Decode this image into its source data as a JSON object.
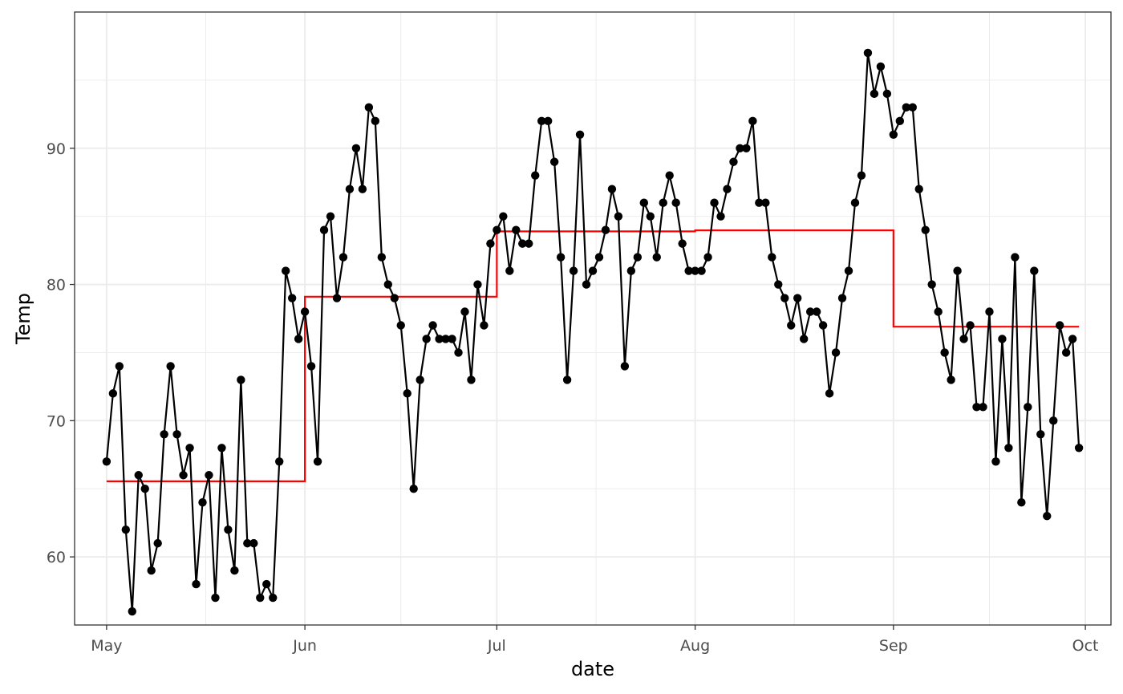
{
  "chart_data": {
    "type": "line",
    "xlabel": "date",
    "ylabel": "Temp",
    "xlim": [
      "1973-04-26",
      "1973-10-05"
    ],
    "ylim": [
      55,
      100
    ],
    "x_ticks": [
      {
        "date": "1973-05-01",
        "label": "May"
      },
      {
        "date": "1973-06-01",
        "label": "Jun"
      },
      {
        "date": "1973-07-01",
        "label": "Jul"
      },
      {
        "date": "1973-08-01",
        "label": "Aug"
      },
      {
        "date": "1973-09-01",
        "label": "Sep"
      },
      {
        "date": "1973-10-01",
        "label": "Oct"
      }
    ],
    "y_ticks": [
      60,
      70,
      80,
      90
    ],
    "grid": true,
    "series": [
      {
        "color": "#000000",
        "markers": true,
        "start_date": "1973-05-01",
        "values": [
          67,
          72,
          74,
          62,
          56,
          66,
          65,
          59,
          61,
          69,
          74,
          69,
          66,
          68,
          58,
          64,
          66,
          57,
          68,
          62,
          59,
          73,
          61,
          61,
          57,
          58,
          57,
          67,
          81,
          79,
          76,
          78,
          74,
          67,
          84,
          85,
          79,
          82,
          87,
          90,
          87,
          93,
          92,
          82,
          80,
          79,
          77,
          72,
          65,
          73,
          76,
          77,
          76,
          76,
          76,
          75,
          78,
          73,
          80,
          77,
          83,
          84,
          85,
          81,
          84,
          83,
          83,
          88,
          92,
          92,
          89,
          82,
          73,
          81,
          91,
          80,
          81,
          82,
          84,
          87,
          85,
          74,
          81,
          82,
          86,
          85,
          82,
          86,
          88,
          86,
          83,
          81,
          81,
          81,
          82,
          86,
          85,
          87,
          89,
          90,
          90,
          92,
          86,
          86,
          82,
          80,
          79,
          77,
          79,
          76,
          78,
          78,
          77,
          72,
          75,
          79,
          81,
          86,
          88,
          97,
          94,
          96,
          94,
          91,
          92,
          93,
          93,
          87,
          84,
          80,
          78,
          75,
          73,
          81,
          76,
          77,
          71,
          71,
          78,
          67,
          76,
          68,
          82,
          64,
          71,
          81,
          69,
          63,
          70,
          77,
          75,
          76,
          68
        ]
      },
      {
        "color": "#ff0000",
        "type": "step",
        "segments": [
          {
            "start": "1973-05-01",
            "end": "1973-06-01",
            "value": 65.55
          },
          {
            "start": "1973-06-01",
            "end": "1973-07-01",
            "value": 79.1
          },
          {
            "start": "1973-07-01",
            "end": "1973-08-01",
            "value": 83.9
          },
          {
            "start": "1973-08-01",
            "end": "1973-09-01",
            "value": 83.97
          },
          {
            "start": "1973-09-01",
            "end": "1973-09-30",
            "value": 76.9
          }
        ]
      }
    ]
  }
}
